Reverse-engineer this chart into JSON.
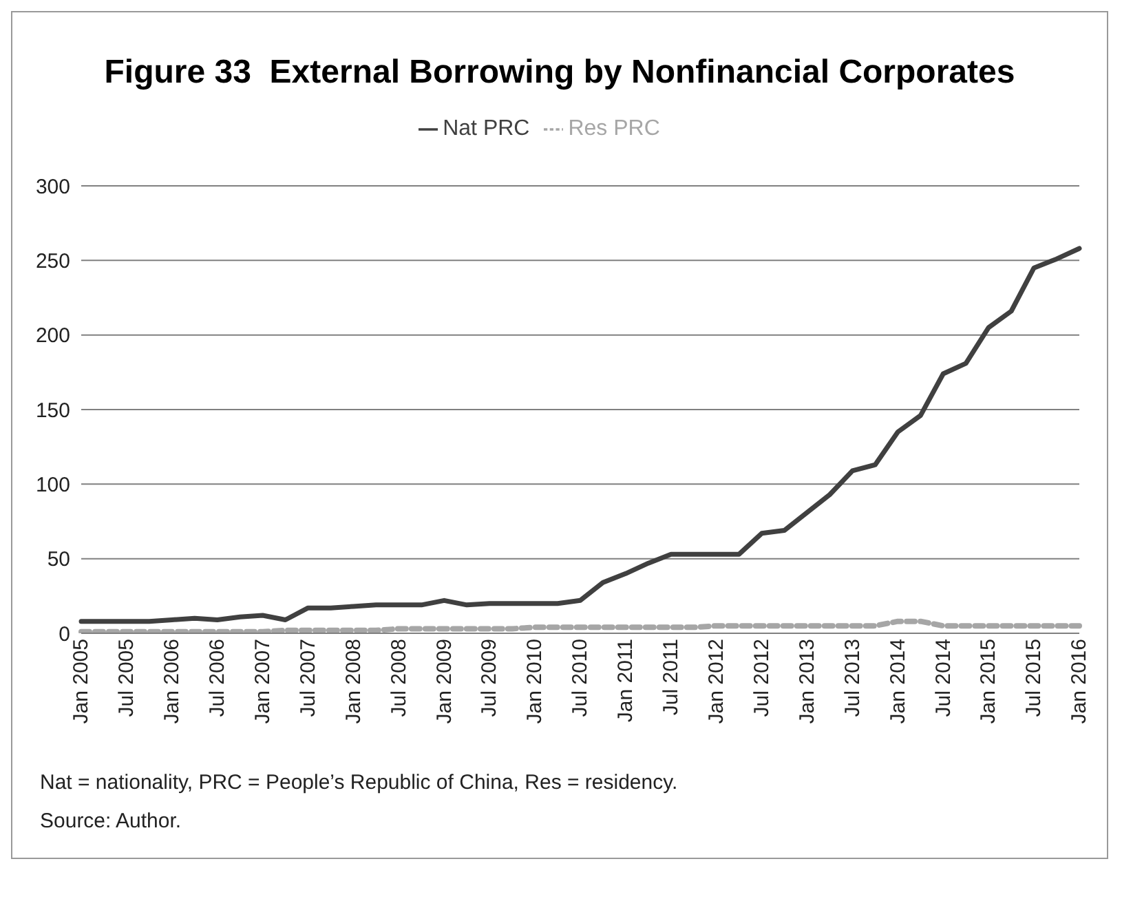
{
  "chart_data": {
    "type": "line",
    "title": "Figure 33  External Borrowing by Nonfinancial Corporates",
    "categories": [
      "Jan 2005",
      null,
      "Jul 2005",
      null,
      "Jan 2006",
      null,
      "Jul 2006",
      null,
      "Jan 2007",
      null,
      "Jul 2007",
      null,
      "Jan 2008",
      null,
      "Jul 2008",
      null,
      "Jan 2009",
      null,
      "Jul 2009",
      null,
      "Jan 2010",
      null,
      "Jul 2010",
      null,
      "Jan 2011",
      null,
      "Jul 2011",
      null,
      "Jan 2012",
      null,
      "Jul 2012",
      null,
      "Jan 2013",
      null,
      "Jul 2013",
      null,
      "Jan 2014",
      null,
      "Jul 2014",
      null,
      "Jan 2015",
      null,
      "Jul 2015",
      null,
      "Jan 2016"
    ],
    "series": [
      {
        "name": "Res PRC",
        "color": "#a6a6a6",
        "line_style": "dashed",
        "values": [
          1,
          1,
          1,
          1,
          1,
          1,
          1,
          1,
          1,
          2,
          2,
          2,
          2,
          2,
          3,
          3,
          3,
          3,
          3,
          3,
          4,
          4,
          4,
          4,
          4,
          4,
          4,
          4,
          5,
          5,
          5,
          5,
          5,
          5,
          5,
          5,
          8,
          8,
          5,
          5,
          5,
          5,
          5,
          5,
          5
        ]
      },
      {
        "name": "Nat PRC",
        "color": "#404040",
        "line_style": "solid",
        "values": [
          8,
          8,
          8,
          8,
          9,
          10,
          9,
          11,
          12,
          9,
          17,
          17,
          18,
          19,
          19,
          19,
          22,
          19,
          20,
          20,
          20,
          20,
          22,
          34,
          40,
          47,
          53,
          53,
          53,
          53,
          67,
          69,
          81,
          93,
          109,
          113,
          135,
          146,
          174,
          181,
          205,
          216,
          245,
          251,
          258
        ]
      }
    ],
    "ylim": [
      0,
      300
    ],
    "yticks": [
      0,
      50,
      100,
      150,
      200,
      250,
      300
    ],
    "grid": "y",
    "legend": "top",
    "marker": "none",
    "annotations": [
      "Nat = nationality, PRC = People’s Republic of China, Res = residency.",
      "Source: Author."
    ]
  }
}
